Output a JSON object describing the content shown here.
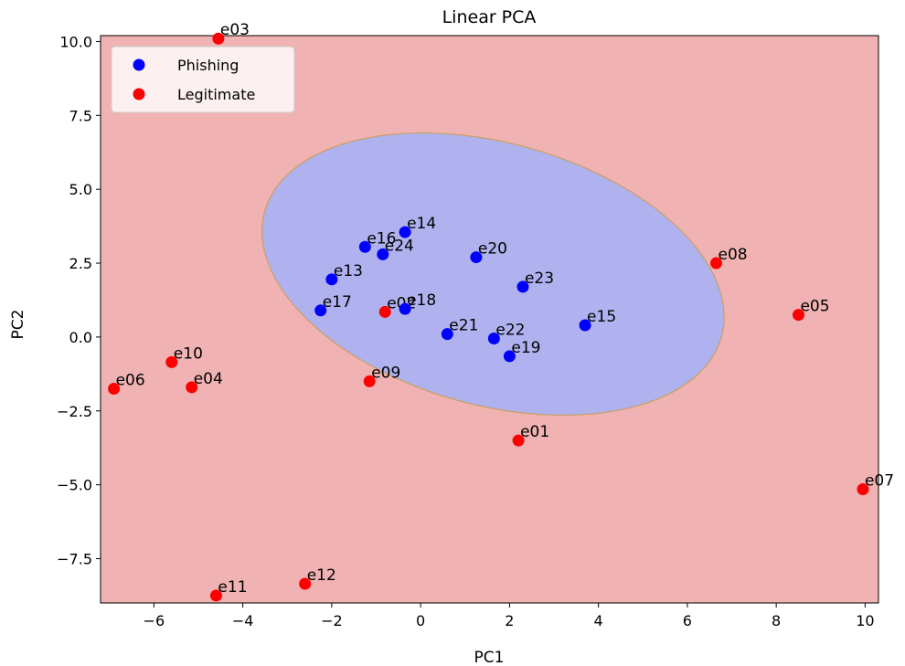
{
  "chart_data": {
    "type": "scatter",
    "title": "Linear PCA",
    "xlabel": "PC1",
    "ylabel": "PC2",
    "xlim": [
      -7.2,
      10.3
    ],
    "ylim": [
      -9.0,
      10.2
    ],
    "xticks": [
      -6,
      -4,
      -2,
      0,
      2,
      4,
      6,
      8,
      10
    ],
    "yticks": [
      -7.5,
      -5.0,
      -2.5,
      0.0,
      2.5,
      5.0,
      7.5,
      10.0
    ],
    "xtick_labels": [
      "−6",
      "−4",
      "−2",
      "0",
      "2",
      "4",
      "6",
      "8",
      "10"
    ],
    "ytick_labels": [
      "−7.5",
      "−5.0",
      "−2.5",
      "0.0",
      "2.5",
      "5.0",
      "7.5",
      "10.0"
    ],
    "grid": false,
    "legend_position": "top-left",
    "background_region_color": "#f0b2b2",
    "decision_region_color": "#b0b2ef",
    "decision_boundary_color": "#c8a060",
    "decision_region": {
      "shape": "ellipse",
      "center": [
        1.63,
        2.13
      ],
      "extreme_points": {
        "leftmost": [
          -4.65,
          3.4
        ],
        "rightmost": [
          5.45,
          0.0
        ],
        "top": [
          0.0,
          6.85
        ],
        "bottom": [
          2.0,
          -2.7
        ]
      }
    },
    "series": [
      {
        "name": "Phishing",
        "color": "#0000ff",
        "points": [
          {
            "label": "e13",
            "x": -2.0,
            "y": 1.95
          },
          {
            "label": "e14",
            "x": -0.35,
            "y": 3.55
          },
          {
            "label": "e15",
            "x": 3.7,
            "y": 0.4
          },
          {
            "label": "e16",
            "x": -1.25,
            "y": 3.05
          },
          {
            "label": "e17",
            "x": -2.25,
            "y": 0.9
          },
          {
            "label": "e18",
            "x": -0.35,
            "y": 0.95
          },
          {
            "label": "e19",
            "x": 2.0,
            "y": -0.65
          },
          {
            "label": "e20",
            "x": 1.25,
            "y": 2.7
          },
          {
            "label": "e21",
            "x": 0.6,
            "y": 0.1
          },
          {
            "label": "e22",
            "x": 1.65,
            "y": -0.05
          },
          {
            "label": "e23",
            "x": 2.3,
            "y": 1.7
          },
          {
            "label": "e24",
            "x": -0.85,
            "y": 2.8
          }
        ]
      },
      {
        "name": "Legitimate",
        "color": "#ff0000",
        "points": [
          {
            "label": "e01",
            "x": 2.2,
            "y": -3.5
          },
          {
            "label": "e02",
            "x": -0.8,
            "y": 0.85
          },
          {
            "label": "e03",
            "x": -4.55,
            "y": 10.1
          },
          {
            "label": "e04",
            "x": -5.15,
            "y": -1.7
          },
          {
            "label": "e05",
            "x": 8.5,
            "y": 0.75
          },
          {
            "label": "e06",
            "x": -6.9,
            "y": -1.75
          },
          {
            "label": "e07",
            "x": 9.95,
            "y": -5.15
          },
          {
            "label": "e08",
            "x": 6.65,
            "y": 2.5
          },
          {
            "label": "e09",
            "x": -1.15,
            "y": -1.5
          },
          {
            "label": "e10",
            "x": -5.6,
            "y": -0.85
          },
          {
            "label": "e11",
            "x": -4.6,
            "y": -8.75
          },
          {
            "label": "e12",
            "x": -2.6,
            "y": -8.35
          }
        ]
      }
    ]
  }
}
